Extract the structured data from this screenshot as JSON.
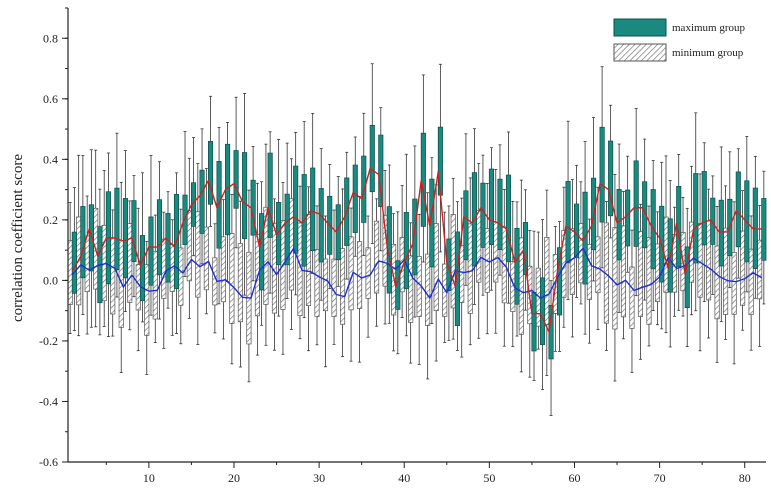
{
  "chart_data": {
    "type": "box",
    "title": "",
    "xlabel": "",
    "ylabel": "correlation coefficient score",
    "xlim": [
      0.5,
      82.5
    ],
    "ylim": [
      -0.6,
      0.9
    ],
    "x_ticks": [
      10,
      20,
      30,
      40,
      50,
      60,
      70,
      80
    ],
    "y_ticks": [
      -0.6,
      -0.4,
      -0.2,
      0.0,
      0.2,
      0.4,
      0.6,
      0.8
    ],
    "x_tick_labels": [
      "10",
      "20",
      "30",
      "40",
      "50",
      "60",
      "70",
      "80"
    ],
    "y_tick_labels": [
      "-0.6",
      "-0.4",
      "-0.2",
      "0.0",
      "0.2",
      "0.4",
      "0.6",
      "0.8"
    ],
    "grid": false,
    "legend": {
      "position": "top-right"
    },
    "colors": {
      "max_fill": "#1a8a80",
      "max_stroke": "#0c4f49",
      "min_fill": "#ffffff",
      "min_stroke": "#555555",
      "max_line": "#cc2222",
      "min_line": "#1f2fd6",
      "whisker": "#333333"
    },
    "series": [
      {
        "name": "maximum group",
        "style": "solid-box",
        "summary_line": "max_line"
      },
      {
        "name": "minimum group",
        "style": "hatched-box",
        "summary_line": "min_line"
      }
    ],
    "max_medians": [
      0.03,
      0.08,
      0.17,
      0.08,
      0.14,
      0.14,
      0.13,
      0.14,
      0.05,
      0.11,
      0.11,
      0.14,
      0.11,
      0.19,
      0.25,
      0.28,
      0.33,
      0.24,
      0.3,
      0.32,
      0.26,
      0.24,
      0.11,
      0.24,
      0.15,
      0.19,
      0.21,
      0.19,
      0.23,
      0.22,
      0.19,
      0.16,
      0.21,
      0.29,
      0.27,
      0.37,
      0.35,
      0.11,
      -0.02,
      0.06,
      0.12,
      0.33,
      0.18,
      0.36,
      0.06,
      -0.02,
      0.21,
      0.19,
      0.24,
      0.2,
      0.19,
      0.17,
      0.06,
      0.1,
      -0.11,
      -0.11,
      -0.17,
      0.03,
      0.18,
      0.16,
      0.13,
      0.18,
      0.32,
      0.3,
      0.19,
      0.21,
      0.24,
      0.24,
      0.18,
      0.14,
      0.04,
      0.19,
      0.02,
      0.17,
      0.19,
      0.2,
      0.16,
      0.16,
      0.23,
      0.2,
      0.17,
      0.17
    ]
  }
}
